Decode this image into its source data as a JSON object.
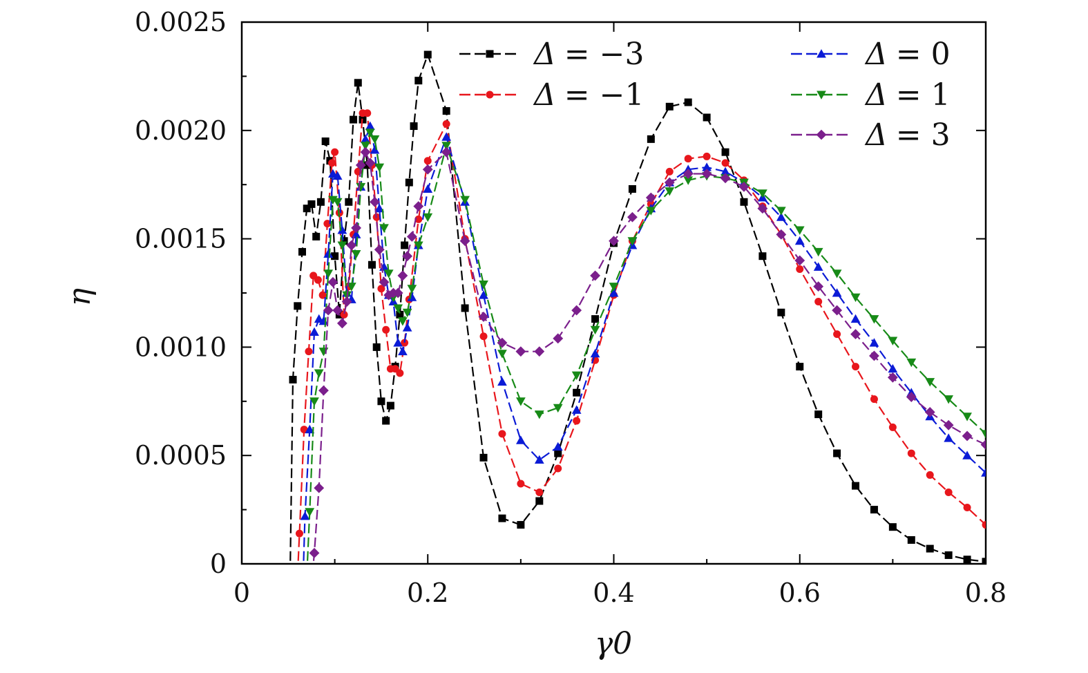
{
  "chart_data": {
    "type": "line",
    "title": "",
    "xlabel": "γ0",
    "ylabel": "η",
    "xlim": [
      0,
      0.8
    ],
    "ylim": [
      0,
      0.0025
    ],
    "x_ticks": [
      0,
      0.2,
      0.4,
      0.6,
      0.8
    ],
    "x_tick_labels": [
      "0",
      "0.2",
      "0.4",
      "0.6",
      "0.8"
    ],
    "y_ticks": [
      0,
      0.0005,
      0.001,
      0.0015,
      0.002,
      0.0025
    ],
    "y_tick_labels": [
      "0",
      "0.0005",
      "0.0010",
      "0.0015",
      "0.0020",
      "0.0025"
    ],
    "legend_position": "top-right",
    "series": [
      {
        "name": "Δ = −3",
        "symbol": "Δ",
        "value_label": "= −3",
        "color": "#000000",
        "marker": "square",
        "points": [
          [
            0.052,
            -5e-05
          ],
          [
            0.055,
            0.00085
          ],
          [
            0.06,
            0.00119
          ],
          [
            0.065,
            0.00144
          ],
          [
            0.07,
            0.00164
          ],
          [
            0.075,
            0.00166
          ],
          [
            0.08,
            0.00151
          ],
          [
            0.085,
            0.00167
          ],
          [
            0.09,
            0.00195
          ],
          [
            0.095,
            0.00186
          ],
          [
            0.1,
            0.00142
          ],
          [
            0.105,
            0.00115
          ],
          [
            0.11,
            0.00149
          ],
          [
            0.115,
            0.00167
          ],
          [
            0.12,
            0.00205
          ],
          [
            0.125,
            0.00222
          ],
          [
            0.13,
            0.00205
          ],
          [
            0.135,
            0.00184
          ],
          [
            0.14,
            0.00138
          ],
          [
            0.145,
            0.001
          ],
          [
            0.15,
            0.00075
          ],
          [
            0.155,
            0.00066
          ],
          [
            0.16,
            0.00073
          ],
          [
            0.165,
            0.00091
          ],
          [
            0.17,
            0.00115
          ],
          [
            0.175,
            0.00147
          ],
          [
            0.18,
            0.00176
          ],
          [
            0.185,
            0.00202
          ],
          [
            0.19,
            0.00223
          ],
          [
            0.2,
            0.00235
          ],
          [
            0.22,
            0.00209
          ],
          [
            0.24,
            0.00118
          ],
          [
            0.26,
            0.00049
          ],
          [
            0.28,
            0.00021
          ],
          [
            0.3,
            0.00018
          ],
          [
            0.32,
            0.00029
          ],
          [
            0.34,
            0.00051
          ],
          [
            0.36,
            0.00079
          ],
          [
            0.38,
            0.00113
          ],
          [
            0.4,
            0.00148
          ],
          [
            0.42,
            0.00173
          ],
          [
            0.44,
            0.00196
          ],
          [
            0.46,
            0.00211
          ],
          [
            0.48,
            0.00213
          ],
          [
            0.5,
            0.00206
          ],
          [
            0.52,
            0.0019
          ],
          [
            0.54,
            0.00167
          ],
          [
            0.56,
            0.00142
          ],
          [
            0.58,
            0.00116
          ],
          [
            0.6,
            0.00091
          ],
          [
            0.62,
            0.00069
          ],
          [
            0.64,
            0.00051
          ],
          [
            0.66,
            0.00036
          ],
          [
            0.68,
            0.00025
          ],
          [
            0.7,
            0.00017
          ],
          [
            0.72,
            0.00011
          ],
          [
            0.74,
            7e-05
          ],
          [
            0.76,
            4e-05
          ],
          [
            0.78,
            2e-05
          ],
          [
            0.8,
            1e-05
          ]
        ]
      },
      {
        "name": "Δ = −1",
        "symbol": "Δ",
        "value_label": "= −1",
        "color": "#e8161c",
        "marker": "circle",
        "points": [
          [
            0.06,
            -5e-05
          ],
          [
            0.062,
            0.00014
          ],
          [
            0.067,
            0.00062
          ],
          [
            0.072,
            0.00098
          ],
          [
            0.077,
            0.00133
          ],
          [
            0.082,
            0.00131
          ],
          [
            0.087,
            0.00124
          ],
          [
            0.092,
            0.00157
          ],
          [
            0.097,
            0.00185
          ],
          [
            0.1,
            0.0019
          ],
          [
            0.105,
            0.00162
          ],
          [
            0.11,
            0.00115
          ],
          [
            0.115,
            0.00128
          ],
          [
            0.12,
            0.00152
          ],
          [
            0.125,
            0.00181
          ],
          [
            0.13,
            0.00208
          ],
          [
            0.135,
            0.00208
          ],
          [
            0.14,
            0.00184
          ],
          [
            0.145,
            0.0016
          ],
          [
            0.15,
            0.00127
          ],
          [
            0.155,
            0.00108
          ],
          [
            0.16,
            0.0009
          ],
          [
            0.165,
            0.0009
          ],
          [
            0.17,
            0.00088
          ],
          [
            0.175,
            0.00102
          ],
          [
            0.18,
            0.00122
          ],
          [
            0.19,
            0.00159
          ],
          [
            0.2,
            0.00186
          ],
          [
            0.22,
            0.00203
          ],
          [
            0.24,
            0.0015
          ],
          [
            0.26,
            0.00105
          ],
          [
            0.28,
            0.0006
          ],
          [
            0.3,
            0.00037
          ],
          [
            0.32,
            0.00033
          ],
          [
            0.34,
            0.00044
          ],
          [
            0.36,
            0.00066
          ],
          [
            0.38,
            0.00094
          ],
          [
            0.4,
            0.00124
          ],
          [
            0.42,
            0.00149
          ],
          [
            0.44,
            0.00166
          ],
          [
            0.46,
            0.00181
          ],
          [
            0.48,
            0.00187
          ],
          [
            0.5,
            0.00188
          ],
          [
            0.52,
            0.00185
          ],
          [
            0.54,
            0.00177
          ],
          [
            0.56,
            0.00165
          ],
          [
            0.58,
            0.00152
          ],
          [
            0.6,
            0.00136
          ],
          [
            0.62,
            0.00121
          ],
          [
            0.64,
            0.00106
          ],
          [
            0.66,
            0.00091
          ],
          [
            0.68,
            0.00076
          ],
          [
            0.7,
            0.00063
          ],
          [
            0.72,
            0.00051
          ],
          [
            0.74,
            0.00041
          ],
          [
            0.76,
            0.00033
          ],
          [
            0.78,
            0.00026
          ],
          [
            0.8,
            0.00018
          ]
        ]
      },
      {
        "name": "Δ = 0",
        "symbol": "Δ",
        "value_label": "= 0",
        "color": "#0b1bd6",
        "marker": "triangle-up",
        "points": [
          [
            0.066,
            -5e-05
          ],
          [
            0.068,
            0.00022
          ],
          [
            0.073,
            0.00062
          ],
          [
            0.078,
            0.00107
          ],
          [
            0.083,
            0.00113
          ],
          [
            0.088,
            0.00112
          ],
          [
            0.093,
            0.00143
          ],
          [
            0.098,
            0.0018
          ],
          [
            0.103,
            0.00179
          ],
          [
            0.108,
            0.00154
          ],
          [
            0.113,
            0.00125
          ],
          [
            0.118,
            0.00122
          ],
          [
            0.123,
            0.00152
          ],
          [
            0.128,
            0.00174
          ],
          [
            0.133,
            0.00196
          ],
          [
            0.138,
            0.00202
          ],
          [
            0.143,
            0.00191
          ],
          [
            0.148,
            0.00164
          ],
          [
            0.153,
            0.00137
          ],
          [
            0.158,
            0.00124
          ],
          [
            0.163,
            0.00121
          ],
          [
            0.168,
            0.00102
          ],
          [
            0.173,
            0.00098
          ],
          [
            0.178,
            0.00109
          ],
          [
            0.183,
            0.00123
          ],
          [
            0.19,
            0.00147
          ],
          [
            0.2,
            0.00173
          ],
          [
            0.22,
            0.00197
          ],
          [
            0.24,
            0.00167
          ],
          [
            0.26,
            0.00124
          ],
          [
            0.28,
            0.00084
          ],
          [
            0.3,
            0.00057
          ],
          [
            0.32,
            0.00048
          ],
          [
            0.34,
            0.00054
          ],
          [
            0.36,
            0.00071
          ],
          [
            0.38,
            0.00097
          ],
          [
            0.4,
            0.00125
          ],
          [
            0.42,
            0.00147
          ],
          [
            0.44,
            0.00164
          ],
          [
            0.46,
            0.00176
          ],
          [
            0.48,
            0.00182
          ],
          [
            0.5,
            0.00183
          ],
          [
            0.52,
            0.00181
          ],
          [
            0.54,
            0.00176
          ],
          [
            0.56,
            0.00169
          ],
          [
            0.58,
            0.0016
          ],
          [
            0.6,
            0.00149
          ],
          [
            0.62,
            0.00137
          ],
          [
            0.64,
            0.00125
          ],
          [
            0.66,
            0.00113
          ],
          [
            0.68,
            0.00102
          ],
          [
            0.7,
            0.0009
          ],
          [
            0.72,
            0.00079
          ],
          [
            0.74,
            0.00068
          ],
          [
            0.76,
            0.00058
          ],
          [
            0.78,
            0.0005
          ],
          [
            0.8,
            0.00042
          ]
        ]
      },
      {
        "name": "Δ = 1",
        "symbol": "Δ",
        "value_label": "= 1",
        "color": "#178a17",
        "marker": "triangle-down",
        "points": [
          [
            0.07,
            -5e-05
          ],
          [
            0.073,
            0.00024
          ],
          [
            0.078,
            0.00075
          ],
          [
            0.083,
            0.00088
          ],
          [
            0.088,
            0.00098
          ],
          [
            0.093,
            0.00134
          ],
          [
            0.098,
            0.00168
          ],
          [
            0.103,
            0.00167
          ],
          [
            0.108,
            0.00147
          ],
          [
            0.113,
            0.00124
          ],
          [
            0.118,
            0.00128
          ],
          [
            0.123,
            0.00143
          ],
          [
            0.128,
            0.00174
          ],
          [
            0.133,
            0.00193
          ],
          [
            0.138,
            0.00199
          ],
          [
            0.143,
            0.00196
          ],
          [
            0.148,
            0.00183
          ],
          [
            0.153,
            0.00155
          ],
          [
            0.158,
            0.00134
          ],
          [
            0.163,
            0.00123
          ],
          [
            0.168,
            0.00118
          ],
          [
            0.173,
            0.00112
          ],
          [
            0.178,
            0.00116
          ],
          [
            0.183,
            0.00127
          ],
          [
            0.19,
            0.00147
          ],
          [
            0.2,
            0.0016
          ],
          [
            0.22,
            0.00193
          ],
          [
            0.24,
            0.00168
          ],
          [
            0.26,
            0.00129
          ],
          [
            0.28,
            0.00097
          ],
          [
            0.3,
            0.00075
          ],
          [
            0.32,
            0.00069
          ],
          [
            0.34,
            0.00072
          ],
          [
            0.36,
            0.00087
          ],
          [
            0.38,
            0.00108
          ],
          [
            0.4,
            0.00128
          ],
          [
            0.42,
            0.00149
          ],
          [
            0.44,
            0.00163
          ],
          [
            0.46,
            0.00172
          ],
          [
            0.48,
            0.00177
          ],
          [
            0.5,
            0.00179
          ],
          [
            0.52,
            0.00178
          ],
          [
            0.54,
            0.00176
          ],
          [
            0.56,
            0.00171
          ],
          [
            0.58,
            0.00163
          ],
          [
            0.6,
            0.00154
          ],
          [
            0.62,
            0.00144
          ],
          [
            0.64,
            0.00134
          ],
          [
            0.66,
            0.00123
          ],
          [
            0.68,
            0.00113
          ],
          [
            0.7,
            0.00103
          ],
          [
            0.72,
            0.00093
          ],
          [
            0.74,
            0.00084
          ],
          [
            0.76,
            0.00076
          ],
          [
            0.78,
            0.00068
          ],
          [
            0.8,
            0.0006
          ]
        ]
      },
      {
        "name": "Δ = 3",
        "symbol": "Δ",
        "value_label": "= 3",
        "color": "#7b1f8c",
        "marker": "diamond",
        "points": [
          [
            0.076,
            -5e-05
          ],
          [
            0.078,
            5e-05
          ],
          [
            0.083,
            0.00035
          ],
          [
            0.088,
            0.0008
          ],
          [
            0.093,
            0.00117
          ],
          [
            0.098,
            0.0013
          ],
          [
            0.103,
            0.00117
          ],
          [
            0.108,
            0.00111
          ],
          [
            0.113,
            0.00121
          ],
          [
            0.118,
            0.00147
          ],
          [
            0.123,
            0.00155
          ],
          [
            0.128,
            0.00184
          ],
          [
            0.133,
            0.0019
          ],
          [
            0.138,
            0.00185
          ],
          [
            0.143,
            0.00167
          ],
          [
            0.148,
            0.00145
          ],
          [
            0.153,
            0.0013
          ],
          [
            0.158,
            0.00124
          ],
          [
            0.163,
            0.00125
          ],
          [
            0.168,
            0.00125
          ],
          [
            0.173,
            0.00133
          ],
          [
            0.178,
            0.00142
          ],
          [
            0.183,
            0.00151
          ],
          [
            0.19,
            0.00165
          ],
          [
            0.2,
            0.00182
          ],
          [
            0.22,
            0.0019
          ],
          [
            0.24,
            0.00149
          ],
          [
            0.26,
            0.00114
          ],
          [
            0.28,
            0.00102
          ],
          [
            0.3,
            0.00098
          ],
          [
            0.32,
            0.00098
          ],
          [
            0.34,
            0.00104
          ],
          [
            0.36,
            0.00117
          ],
          [
            0.38,
            0.00133
          ],
          [
            0.4,
            0.00149
          ],
          [
            0.42,
            0.0016
          ],
          [
            0.44,
            0.00169
          ],
          [
            0.46,
            0.00176
          ],
          [
            0.48,
            0.0018
          ],
          [
            0.5,
            0.0018
          ],
          [
            0.52,
            0.00178
          ],
          [
            0.54,
            0.00174
          ],
          [
            0.56,
            0.00164
          ],
          [
            0.58,
            0.00152
          ],
          [
            0.6,
            0.0014
          ],
          [
            0.62,
            0.00128
          ],
          [
            0.64,
            0.00117
          ],
          [
            0.66,
            0.00106
          ],
          [
            0.68,
            0.00096
          ],
          [
            0.7,
            0.00086
          ],
          [
            0.72,
            0.00077
          ],
          [
            0.74,
            0.0007
          ],
          [
            0.76,
            0.00064
          ],
          [
            0.78,
            0.00059
          ],
          [
            0.8,
            0.00055
          ]
        ]
      }
    ]
  }
}
